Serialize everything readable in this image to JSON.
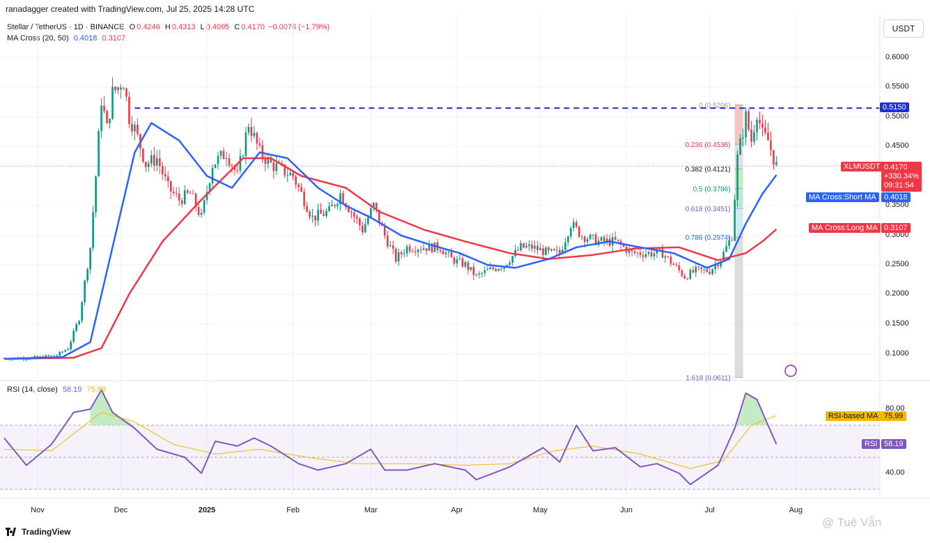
{
  "header": {
    "text": "ranadagger created with TradingView.com, Jul 25, 2025 14:28 UTC"
  },
  "legend": {
    "symbol": "Stellar / TetherUS · 1D · BINANCE",
    "o_label": "O",
    "o_value": "0.4246",
    "h_label": "H",
    "h_value": "0.4313",
    "l_label": "L",
    "l_value": "0.4095",
    "c_label": "C",
    "c_value": "0.4170",
    "change": "−0.0076 (−1.79%)",
    "ma_label": "MA Cross (20, 50)",
    "ma_short_value": "0.4018",
    "ma_long_value": "0.3107"
  },
  "rsi_legend": {
    "label": "RSI (14, close)",
    "rsi_value": "58.19",
    "ma_value": "75.99"
  },
  "currency": "USDT",
  "price_axis": [
    "0.6000",
    "0.5500",
    "0.5000",
    "0.4500",
    "0.3500",
    "0.3000",
    "0.2500",
    "0.2000",
    "0.1500",
    "0.1000"
  ],
  "rsi_axis": [
    "80.00",
    "40.00"
  ],
  "time_axis": [
    "Nov",
    "Dec",
    "2025",
    "Feb",
    "Mar",
    "Apr",
    "May",
    "Jun",
    "Jul",
    "Aug"
  ],
  "price_labels": {
    "resistance": "0.5150",
    "symbol_tag": "XLMUSDT",
    "last_price": "0.4170",
    "last_change": "+330.34%",
    "countdown": "09:31:54",
    "ma_short_tag": "MA Cross:Short MA",
    "ma_short_price": "0.4018",
    "ma_long_tag": "MA Cross:Long MA",
    "ma_long_price": "0.3107",
    "rsi_ma_tag": "RSI-based MA",
    "rsi_ma_value": "75.99",
    "rsi_tag": "RSI",
    "rsi_value": "58.19"
  },
  "fib_labels": [
    "0 (0.5206)",
    "0.236 (0.4536)",
    "0.382 (0.4121)",
    "0.5 (0.3786)",
    "0.618 (0.3451)",
    "0.786 (0.2974)",
    "1.618 (0.0611)"
  ],
  "logo": {
    "text": "TradingView"
  },
  "watermark": "@ Tuệ Vẫn",
  "colors": {
    "up": "#089981",
    "down": "#f23645",
    "ma_short": "#2962ff",
    "ma_long": "#f23645",
    "rsi": "#7e57c2",
    "rsi_ma": "#f0b90b",
    "dashed": "#1e2fd6"
  },
  "chart_data": {
    "type": "candlestick",
    "title": "Stellar / TetherUS · 1D · BINANCE",
    "ylim": [
      0.07,
      0.64
    ],
    "resistance_level": 0.515,
    "fibonacci": [
      {
        "level": 0,
        "price": 0.5206
      },
      {
        "level": 0.236,
        "price": 0.4536
      },
      {
        "level": 0.382,
        "price": 0.4121
      },
      {
        "level": 0.5,
        "price": 0.3786
      },
      {
        "level": 0.618,
        "price": 0.3451
      },
      {
        "level": 0.786,
        "price": 0.2974
      },
      {
        "level": 1.618,
        "price": 0.0611
      }
    ],
    "price_series": [
      [
        "2024-10-20",
        0.093
      ],
      [
        "2024-11-01",
        0.094
      ],
      [
        "2024-11-08",
        0.098
      ],
      [
        "2024-11-12",
        0.11
      ],
      [
        "2024-11-16",
        0.16
      ],
      [
        "2024-11-20",
        0.28
      ],
      [
        "2024-11-22",
        0.4
      ],
      [
        "2024-11-24",
        0.53
      ],
      [
        "2024-11-26",
        0.48
      ],
      [
        "2024-11-28",
        0.54
      ],
      [
        "2024-12-02",
        0.56
      ],
      [
        "2024-12-04",
        0.5
      ],
      [
        "2024-12-06",
        0.48
      ],
      [
        "2024-12-10",
        0.42
      ],
      [
        "2024-12-14",
        0.43
      ],
      [
        "2024-12-18",
        0.38
      ],
      [
        "2024-12-22",
        0.36
      ],
      [
        "2024-12-26",
        0.37
      ],
      [
        "2024-12-30",
        0.33
      ],
      [
        "2025-01-03",
        0.42
      ],
      [
        "2025-01-08",
        0.44
      ],
      [
        "2025-01-12",
        0.4
      ],
      [
        "2025-01-16",
        0.49
      ],
      [
        "2025-01-20",
        0.44
      ],
      [
        "2025-01-24",
        0.42
      ],
      [
        "2025-01-28",
        0.41
      ],
      [
        "2025-02-01",
        0.4
      ],
      [
        "2025-02-04",
        0.37
      ],
      [
        "2025-02-08",
        0.33
      ],
      [
        "2025-02-14",
        0.34
      ],
      [
        "2025-02-18",
        0.37
      ],
      [
        "2025-02-22",
        0.34
      ],
      [
        "2025-02-26",
        0.31
      ],
      [
        "2025-03-02",
        0.35
      ],
      [
        "2025-03-06",
        0.3
      ],
      [
        "2025-03-10",
        0.26
      ],
      [
        "2025-03-14",
        0.28
      ],
      [
        "2025-03-20",
        0.28
      ],
      [
        "2025-03-26",
        0.28
      ],
      [
        "2025-03-30",
        0.26
      ],
      [
        "2025-04-04",
        0.25
      ],
      [
        "2025-04-08",
        0.23
      ],
      [
        "2025-04-12",
        0.24
      ],
      [
        "2025-04-18",
        0.25
      ],
      [
        "2025-04-24",
        0.28
      ],
      [
        "2025-04-28",
        0.28
      ],
      [
        "2025-05-04",
        0.27
      ],
      [
        "2025-05-08",
        0.27
      ],
      [
        "2025-05-12",
        0.32
      ],
      [
        "2025-05-16",
        0.3
      ],
      [
        "2025-05-22",
        0.29
      ],
      [
        "2025-05-28",
        0.29
      ],
      [
        "2025-06-03",
        0.27
      ],
      [
        "2025-06-08",
        0.27
      ],
      [
        "2025-06-14",
        0.27
      ],
      [
        "2025-06-18",
        0.25
      ],
      [
        "2025-06-22",
        0.23
      ],
      [
        "2025-06-26",
        0.24
      ],
      [
        "2025-07-01",
        0.24
      ],
      [
        "2025-07-05",
        0.26
      ],
      [
        "2025-07-09",
        0.3
      ],
      [
        "2025-07-11",
        0.43
      ],
      [
        "2025-07-14",
        0.5
      ],
      [
        "2025-07-16",
        0.46
      ],
      [
        "2025-07-18",
        0.51
      ],
      [
        "2025-07-20",
        0.47
      ],
      [
        "2025-07-22",
        0.46
      ],
      [
        "2025-07-24",
        0.43
      ],
      [
        "2025-07-25",
        0.417
      ]
    ],
    "ma_short": [
      [
        "2024-10-20",
        0.092
      ],
      [
        "2024-11-10",
        0.095
      ],
      [
        "2024-11-20",
        0.12
      ],
      [
        "2024-11-28",
        0.28
      ],
      [
        "2024-12-06",
        0.44
      ],
      [
        "2024-12-12",
        0.49
      ],
      [
        "2024-12-22",
        0.46
      ],
      [
        "2025-01-01",
        0.4
      ],
      [
        "2025-01-10",
        0.38
      ],
      [
        "2025-01-20",
        0.44
      ],
      [
        "2025-01-30",
        0.43
      ],
      [
        "2025-02-10",
        0.38
      ],
      [
        "2025-02-20",
        0.35
      ],
      [
        "2025-03-01",
        0.33
      ],
      [
        "2025-03-12",
        0.3
      ],
      [
        "2025-03-22",
        0.285
      ],
      [
        "2025-04-02",
        0.27
      ],
      [
        "2025-04-12",
        0.25
      ],
      [
        "2025-04-22",
        0.245
      ],
      [
        "2025-05-04",
        0.26
      ],
      [
        "2025-05-14",
        0.28
      ],
      [
        "2025-05-26",
        0.29
      ],
      [
        "2025-06-06",
        0.28
      ],
      [
        "2025-06-18",
        0.27
      ],
      [
        "2025-06-30",
        0.245
      ],
      [
        "2025-07-08",
        0.26
      ],
      [
        "2025-07-14",
        0.32
      ],
      [
        "2025-07-20",
        0.37
      ],
      [
        "2025-07-25",
        0.4018
      ]
    ],
    "ma_long": [
      [
        "2024-10-20",
        0.092
      ],
      [
        "2024-11-14",
        0.094
      ],
      [
        "2024-11-24",
        0.11
      ],
      [
        "2024-12-04",
        0.2
      ],
      [
        "2024-12-16",
        0.29
      ],
      [
        "2024-12-30",
        0.36
      ],
      [
        "2025-01-14",
        0.43
      ],
      [
        "2025-01-24",
        0.43
      ],
      [
        "2025-02-04",
        0.4
      ],
      [
        "2025-02-20",
        0.38
      ],
      [
        "2025-03-04",
        0.34
      ],
      [
        "2025-03-20",
        0.31
      ],
      [
        "2025-04-04",
        0.29
      ],
      [
        "2025-04-20",
        0.27
      ],
      [
        "2025-05-04",
        0.26
      ],
      [
        "2025-05-20",
        0.267
      ],
      [
        "2025-06-04",
        0.278
      ],
      [
        "2025-06-20",
        0.28
      ],
      [
        "2025-07-04",
        0.258
      ],
      [
        "2025-07-14",
        0.27
      ],
      [
        "2025-07-20",
        0.29
      ],
      [
        "2025-07-25",
        0.3107
      ]
    ],
    "rsi": {
      "ylim": [
        25,
        95
      ],
      "bands": [
        30,
        50,
        70
      ],
      "series": [
        [
          "2024-10-20",
          62
        ],
        [
          "2024-10-28",
          45
        ],
        [
          "2024-11-06",
          58
        ],
        [
          "2024-11-14",
          78
        ],
        [
          "2024-11-20",
          80
        ],
        [
          "2024-11-24",
          92
        ],
        [
          "2024-11-28",
          78
        ],
        [
          "2024-12-06",
          68
        ],
        [
          "2024-12-14",
          55
        ],
        [
          "2024-12-24",
          50
        ],
        [
          "2024-12-30",
          40
        ],
        [
          "2025-01-04",
          60
        ],
        [
          "2025-01-12",
          57
        ],
        [
          "2025-01-18",
          62
        ],
        [
          "2025-01-24",
          57
        ],
        [
          "2025-02-03",
          46
        ],
        [
          "2025-02-10",
          42
        ],
        [
          "2025-02-20",
          46
        ],
        [
          "2025-03-01",
          55
        ],
        [
          "2025-03-06",
          42
        ],
        [
          "2025-03-14",
          42
        ],
        [
          "2025-03-24",
          46
        ],
        [
          "2025-04-04",
          42
        ],
        [
          "2025-04-08",
          36
        ],
        [
          "2025-04-20",
          44
        ],
        [
          "2025-05-02",
          56
        ],
        [
          "2025-05-08",
          47
        ],
        [
          "2025-05-14",
          70
        ],
        [
          "2025-05-20",
          54
        ],
        [
          "2025-05-28",
          56
        ],
        [
          "2025-06-06",
          44
        ],
        [
          "2025-06-12",
          46
        ],
        [
          "2025-06-20",
          40
        ],
        [
          "2025-06-24",
          33
        ],
        [
          "2025-07-04",
          45
        ],
        [
          "2025-07-10",
          68
        ],
        [
          "2025-07-14",
          90
        ],
        [
          "2025-07-18",
          86
        ],
        [
          "2025-07-22",
          70
        ],
        [
          "2025-07-25",
          58.19
        ]
      ],
      "ma": [
        [
          "2024-10-20",
          55
        ],
        [
          "2024-11-06",
          54
        ],
        [
          "2024-11-24",
          78
        ],
        [
          "2024-12-06",
          72
        ],
        [
          "2024-12-20",
          58
        ],
        [
          "2025-01-04",
          52
        ],
        [
          "2025-01-20",
          55
        ],
        [
          "2025-02-06",
          50
        ],
        [
          "2025-02-24",
          46
        ],
        [
          "2025-03-16",
          46
        ],
        [
          "2025-04-04",
          45
        ],
        [
          "2025-04-20",
          46
        ],
        [
          "2025-05-06",
          54
        ],
        [
          "2025-05-20",
          57
        ],
        [
          "2025-06-06",
          52
        ],
        [
          "2025-06-24",
          43
        ],
        [
          "2025-07-06",
          48
        ],
        [
          "2025-07-16",
          70
        ],
        [
          "2025-07-25",
          75.99
        ]
      ]
    }
  }
}
